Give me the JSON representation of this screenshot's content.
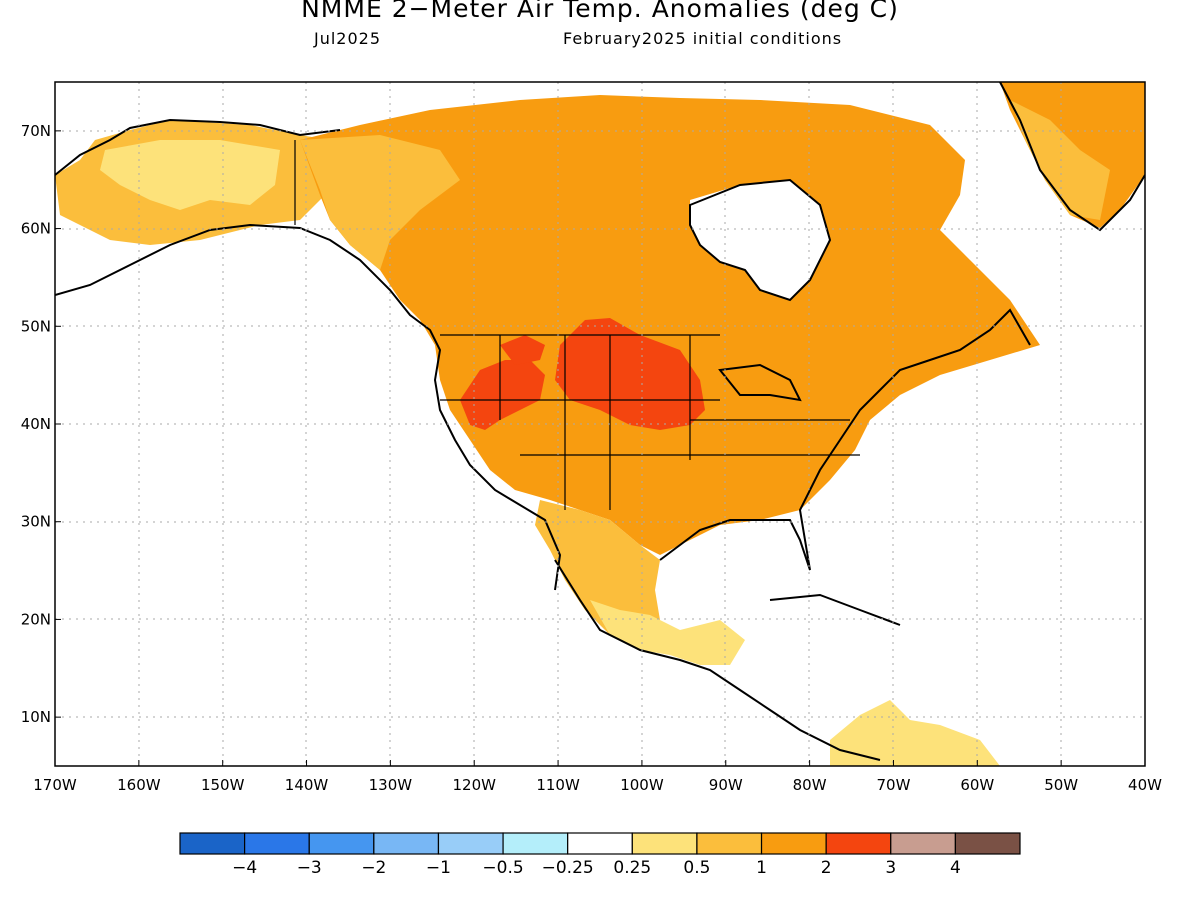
{
  "header": {
    "title": "NMME 2−Meter Air Temp. Anomalies (deg C)",
    "target_month": "Jul2025",
    "init": "February2025 initial conditions"
  },
  "map": {
    "lon_range": [
      -170,
      -40
    ],
    "lat_range": [
      5,
      75
    ],
    "lat_labels": [
      "10N",
      "20N",
      "30N",
      "40N",
      "50N",
      "60N",
      "70N"
    ],
    "lon_labels": [
      "170W",
      "160W",
      "150W",
      "140W",
      "130W",
      "120W",
      "110W",
      "100W",
      "90W",
      "80W",
      "70W",
      "60W",
      "50W",
      "40W"
    ]
  },
  "colorbar": {
    "labels": [
      "−4",
      "−3",
      "−2",
      "−1",
      "−0.5",
      "−0.25",
      "0.25",
      "0.5",
      "1",
      "2",
      "3",
      "4"
    ],
    "colors": [
      "#1a64c8",
      "#2a77e8",
      "#4596f0",
      "#78b7f5",
      "#98cdf8",
      "#b4eefa",
      "#ffffff",
      "#fde27a",
      "#fbbe3c",
      "#f89c10",
      "#f4450f",
      "#c89d90",
      "#7a5145"
    ]
  },
  "anomaly_regions": [
    {
      "name": "alaska-west",
      "level": "0.5 to 1"
    },
    {
      "name": "canada-north",
      "level": "1 to 2"
    },
    {
      "name": "northern-plains",
      "level": "2 to 3"
    },
    {
      "name": "great-basin",
      "level": "2 to 3"
    },
    {
      "name": "eastern-us",
      "level": "1 to 2"
    },
    {
      "name": "mexico",
      "level": "0.5 to 1"
    },
    {
      "name": "greenland",
      "level": "1 to 2"
    }
  ]
}
